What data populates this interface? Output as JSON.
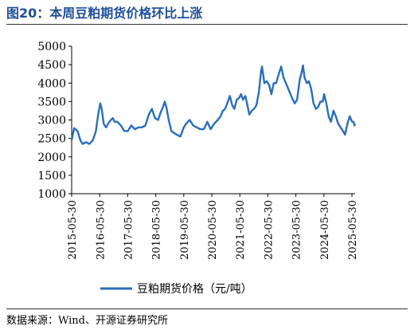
{
  "header": {
    "title": "图20：本周豆粕期货价格环比上涨"
  },
  "footer": {
    "source": "数据来源：Wind、开源证券研究所"
  },
  "colors": {
    "series": "#2a6eb8",
    "title": "#1f4e9a",
    "axis": "#000000"
  },
  "chart_data": {
    "type": "line",
    "title": "",
    "xlabel": "",
    "ylabel": "",
    "ylim": [
      1000,
      5000
    ],
    "yticks": [
      "1000",
      "1500",
      "2000",
      "2500",
      "3000",
      "3500",
      "4000",
      "4500",
      "5000"
    ],
    "xlim": [
      "2015-05-30",
      "2025-07-10"
    ],
    "xticks": [
      "2015-05-30",
      "2016-05-30",
      "2017-05-30",
      "2018-05-30",
      "2019-05-30",
      "2020-05-30",
      "2021-05-30",
      "2022-05-30",
      "2023-05-30",
      "2024-05-30",
      "2025-05-30"
    ],
    "grid": false,
    "legend": "bottom",
    "series": [
      {
        "name": "豆粕期货价格（元/吨）",
        "points": [
          [
            "2015-05-30",
            2450
          ],
          [
            "2015-07-01",
            2780
          ],
          [
            "2015-08-15",
            2700
          ],
          [
            "2015-09-20",
            2450
          ],
          [
            "2015-10-20",
            2350
          ],
          [
            "2015-12-01",
            2400
          ],
          [
            "2016-01-15",
            2350
          ],
          [
            "2016-03-01",
            2450
          ],
          [
            "2016-04-10",
            2700
          ],
          [
            "2016-05-10",
            3150
          ],
          [
            "2016-06-05",
            3450
          ],
          [
            "2016-06-25",
            3300
          ],
          [
            "2016-07-20",
            2900
          ],
          [
            "2016-08-20",
            2800
          ],
          [
            "2016-10-01",
            2950
          ],
          [
            "2016-11-15",
            3050
          ],
          [
            "2016-12-10",
            2950
          ],
          [
            "2017-01-15",
            2950
          ],
          [
            "2017-03-01",
            2850
          ],
          [
            "2017-04-15",
            2700
          ],
          [
            "2017-06-01",
            2700
          ],
          [
            "2017-07-15",
            2850
          ],
          [
            "2017-09-01",
            2750
          ],
          [
            "2017-10-15",
            2800
          ],
          [
            "2017-12-01",
            2800
          ],
          [
            "2018-01-15",
            2850
          ],
          [
            "2018-03-01",
            3150
          ],
          [
            "2018-04-10",
            3300
          ],
          [
            "2018-05-20",
            3050
          ],
          [
            "2018-06-30",
            3000
          ],
          [
            "2018-08-01",
            3200
          ],
          [
            "2018-09-01",
            3350
          ],
          [
            "2018-09-25",
            3500
          ],
          [
            "2018-10-20",
            3300
          ],
          [
            "2018-11-15",
            3000
          ],
          [
            "2018-12-20",
            2700
          ],
          [
            "2019-01-20",
            2650
          ],
          [
            "2019-03-01",
            2600
          ],
          [
            "2019-04-15",
            2550
          ],
          [
            "2019-05-30",
            2800
          ],
          [
            "2019-07-01",
            2900
          ],
          [
            "2019-08-15",
            3000
          ],
          [
            "2019-10-01",
            2850
          ],
          [
            "2019-11-15",
            2800
          ],
          [
            "2020-01-01",
            2750
          ],
          [
            "2020-02-15",
            2750
          ],
          [
            "2020-04-01",
            2950
          ],
          [
            "2020-05-15",
            2750
          ],
          [
            "2020-06-30",
            2900
          ],
          [
            "2020-08-15",
            3000
          ],
          [
            "2020-09-20",
            3100
          ],
          [
            "2020-10-20",
            3250
          ],
          [
            "2020-11-20",
            3300
          ],
          [
            "2020-12-25",
            3500
          ],
          [
            "2021-01-20",
            3650
          ],
          [
            "2021-02-20",
            3400
          ],
          [
            "2021-03-20",
            3300
          ],
          [
            "2021-04-20",
            3550
          ],
          [
            "2021-05-20",
            3600
          ],
          [
            "2021-06-15",
            3700
          ],
          [
            "2021-07-10",
            3550
          ],
          [
            "2021-08-10",
            3650
          ],
          [
            "2021-09-05",
            3400
          ],
          [
            "2021-10-01",
            3150
          ],
          [
            "2021-11-01",
            3250
          ],
          [
            "2021-12-01",
            3300
          ],
          [
            "2022-01-01",
            3400
          ],
          [
            "2022-02-01",
            3750
          ],
          [
            "2022-03-01",
            4300
          ],
          [
            "2022-03-15",
            4450
          ],
          [
            "2022-04-15",
            4000
          ],
          [
            "2022-05-15",
            4050
          ],
          [
            "2022-06-15",
            3950
          ],
          [
            "2022-07-15",
            3700
          ],
          [
            "2022-08-15",
            4000
          ],
          [
            "2022-09-15",
            4000
          ],
          [
            "2022-10-20",
            4250
          ],
          [
            "2022-11-20",
            4450
          ],
          [
            "2022-12-20",
            4150
          ],
          [
            "2023-01-20",
            4000
          ],
          [
            "2023-03-01",
            3800
          ],
          [
            "2023-04-10",
            3600
          ],
          [
            "2023-05-15",
            3450
          ],
          [
            "2023-06-15",
            3550
          ],
          [
            "2023-07-20",
            4100
          ],
          [
            "2023-08-15",
            4300
          ],
          [
            "2023-08-31",
            4480
          ],
          [
            "2023-09-20",
            4150
          ],
          [
            "2023-10-20",
            4000
          ],
          [
            "2023-11-15",
            4050
          ],
          [
            "2023-12-15",
            3850
          ],
          [
            "2024-01-15",
            3450
          ],
          [
            "2024-02-15",
            3300
          ],
          [
            "2024-03-15",
            3350
          ],
          [
            "2024-04-15",
            3500
          ],
          [
            "2024-05-15",
            3500
          ],
          [
            "2024-06-01",
            3700
          ],
          [
            "2024-06-30",
            3450
          ],
          [
            "2024-07-30",
            3100
          ],
          [
            "2024-08-30",
            2950
          ],
          [
            "2024-10-01",
            3250
          ],
          [
            "2024-11-01",
            3100
          ],
          [
            "2024-12-01",
            2900
          ],
          [
            "2025-01-01",
            2800
          ],
          [
            "2025-02-01",
            2700
          ],
          [
            "2025-03-01",
            2600
          ],
          [
            "2025-04-01",
            2900
          ],
          [
            "2025-05-01",
            3100
          ],
          [
            "2025-06-01",
            2950
          ],
          [
            "2025-06-20",
            2950
          ],
          [
            "2025-07-01",
            2850
          ],
          [
            "2025-07-10",
            2900
          ]
        ]
      }
    ]
  }
}
